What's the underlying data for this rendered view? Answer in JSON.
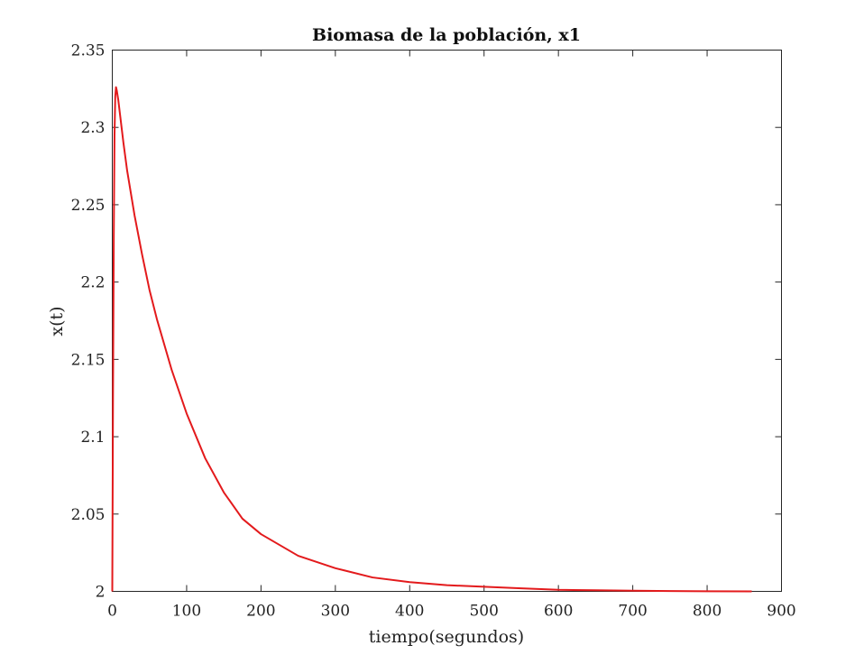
{
  "chart_data": {
    "type": "line",
    "title": "Biomasa de la población, x1",
    "xlabel": "tiempo(segundos)",
    "ylabel": "x(t)",
    "xlim": [
      0,
      900
    ],
    "ylim": [
      2,
      2.35
    ],
    "xticks": [
      0,
      100,
      200,
      300,
      400,
      500,
      600,
      700,
      800,
      900
    ],
    "yticks": [
      2,
      2.05,
      2.1,
      2.15,
      2.2,
      2.25,
      2.3,
      2.35
    ],
    "xtick_labels": [
      "0",
      "100",
      "200",
      "300",
      "400",
      "500",
      "600",
      "700",
      "800",
      "900"
    ],
    "ytick_labels": [
      "2",
      "2.05",
      "2.1",
      "2.15",
      "2.2",
      "2.25",
      "2.3",
      "2.35"
    ],
    "grid": false,
    "series": [
      {
        "color": "#e31a1c",
        "x": [
          0,
          1,
          2,
          3,
          4,
          5,
          6,
          8,
          10,
          15,
          20,
          30,
          40,
          50,
          60,
          80,
          100,
          125,
          150,
          175,
          200,
          250,
          300,
          350,
          400,
          450,
          500,
          550,
          600,
          650,
          700,
          750,
          800,
          860
        ],
        "y": [
          2.0,
          2.13,
          2.23,
          2.295,
          2.32,
          2.326,
          2.324,
          2.318,
          2.31,
          2.29,
          2.272,
          2.243,
          2.218,
          2.195,
          2.176,
          2.143,
          2.115,
          2.086,
          2.064,
          2.047,
          2.037,
          2.023,
          2.015,
          2.009,
          2.006,
          2.004,
          2.003,
          2.002,
          2.001,
          2.0007,
          2.0004,
          2.0002,
          2.0001,
          2.0
        ]
      }
    ]
  }
}
